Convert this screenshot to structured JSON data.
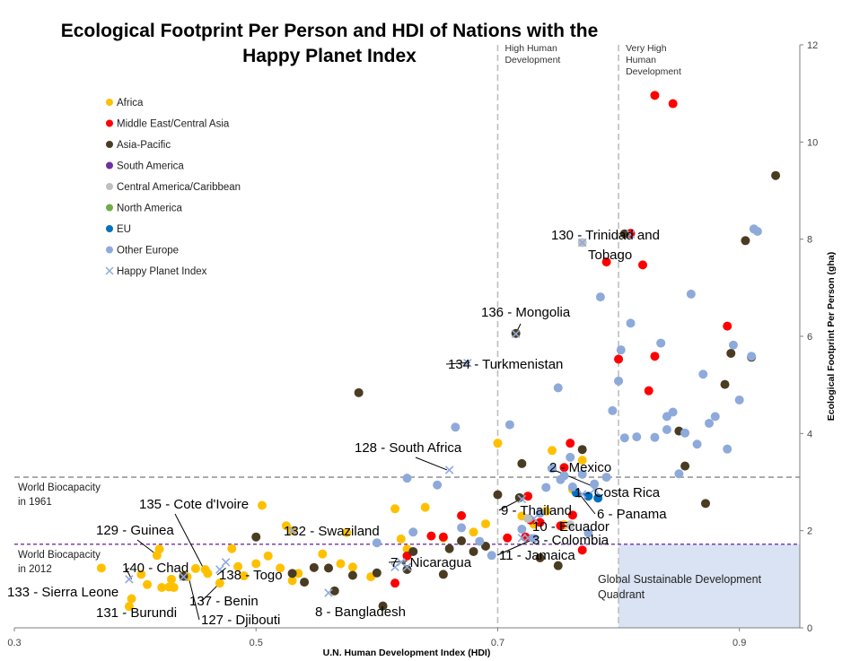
{
  "chart_data": {
    "type": "scatter",
    "title_lines": [
      "Ecological Footprint Per Person and HDI of Nations with the",
      "Happy Planet Index"
    ],
    "xlabel": "U.N. Human Development Index (HDI)",
    "ylabel": "Ecological Footprint Per Person (gha)",
    "xlim": [
      0.3,
      0.95
    ],
    "ylim": [
      0,
      12
    ],
    "x_ticks": [
      "0.3",
      "0.5",
      "0.7",
      "0.9"
    ],
    "y_ticks": [
      "0",
      "2",
      "4",
      "6",
      "8",
      "10",
      "12"
    ],
    "y_axis_position": "right",
    "grid": false,
    "legend_position": "top-left",
    "colors": {
      "Africa": "#ffc000",
      "Middle East/Central Asia": "#ff0000",
      "Asia-Pacific": "#4a3c22",
      "South America": "#7030a0",
      "Central America/Caribbean": "#bfbfbf",
      "North America": "#70ad47",
      "EU": "#0070c0",
      "Other Europe": "#8eaadb",
      "Happy Planet Index": "#8eaadb"
    },
    "legend": [
      "Africa",
      "Middle East/Central Asia",
      "Asia-Pacific",
      "South America",
      "Central America/Caribbean",
      "North America",
      "EU",
      "Other Europe",
      "Happy Planet Index"
    ],
    "reference_lines": [
      {
        "label_lines": [
          "World Biocapacity",
          "in 1961"
        ],
        "y": 3.1,
        "color": "#a6a6a6"
      },
      {
        "label_lines": [
          "World Biocapacity",
          "in 2012"
        ],
        "y": 1.72,
        "color": "#7030a0"
      }
    ],
    "hdi_thresholds": [
      {
        "label_lines": [
          "High Human",
          "Development"
        ],
        "x": 0.7
      },
      {
        "label_lines": [
          "Very High",
          "Human",
          "Development"
        ],
        "x": 0.8
      }
    ],
    "quadrant": {
      "label_lines": [
        "Global Sustainable Development",
        "Quadrant"
      ],
      "x": [
        0.8,
        0.95
      ],
      "y": [
        0,
        1.72
      ]
    },
    "series": [
      {
        "name": "Africa",
        "points": [
          [
            0.372,
            1.23
          ],
          [
            0.395,
            0.44
          ],
          [
            0.397,
            0.6
          ],
          [
            0.405,
            1.1
          ],
          [
            0.41,
            0.89
          ],
          [
            0.418,
            1.49
          ],
          [
            0.42,
            1.62
          ],
          [
            0.422,
            0.83
          ],
          [
            0.428,
            0.84
          ],
          [
            0.43,
            1.0
          ],
          [
            0.432,
            0.83
          ],
          [
            0.44,
            1.08
          ],
          [
            0.443,
            1.05
          ],
          [
            0.45,
            1.22
          ],
          [
            0.458,
            1.2
          ],
          [
            0.46,
            1.12
          ],
          [
            0.47,
            0.92
          ],
          [
            0.48,
            1.63
          ],
          [
            0.485,
            1.26
          ],
          [
            0.49,
            1.07
          ],
          [
            0.5,
            1.32
          ],
          [
            0.505,
            2.52
          ],
          [
            0.51,
            1.48
          ],
          [
            0.52,
            1.23
          ],
          [
            0.53,
            0.97
          ],
          [
            0.535,
            1.12
          ],
          [
            0.555,
            1.52
          ],
          [
            0.57,
            1.32
          ],
          [
            0.575,
            1.96
          ],
          [
            0.58,
            1.25
          ],
          [
            0.595,
            1.05
          ],
          [
            0.615,
            2.45
          ],
          [
            0.62,
            1.83
          ],
          [
            0.625,
            1.62
          ],
          [
            0.64,
            2.48
          ],
          [
            0.655,
            1.85
          ],
          [
            0.68,
            1.97
          ],
          [
            0.69,
            2.14
          ],
          [
            0.7,
            3.8
          ],
          [
            0.72,
            2.3
          ],
          [
            0.73,
            2.13
          ],
          [
            0.74,
            2.4
          ],
          [
            0.745,
            3.65
          ],
          [
            0.755,
            2.12
          ],
          [
            0.762,
            2.85
          ],
          [
            0.77,
            3.45
          ],
          [
            0.53,
            2.0
          ],
          [
            0.525,
            2.1
          ]
        ]
      },
      {
        "name": "Middle East/Central Asia",
        "points": [
          [
            0.615,
            0.92
          ],
          [
            0.625,
            1.48
          ],
          [
            0.645,
            1.89
          ],
          [
            0.655,
            1.87
          ],
          [
            0.67,
            2.31
          ],
          [
            0.708,
            1.85
          ],
          [
            0.723,
            1.87
          ],
          [
            0.727,
            2.22
          ],
          [
            0.735,
            2.17
          ],
          [
            0.752,
            2.1
          ],
          [
            0.755,
            3.3
          ],
          [
            0.76,
            3.8
          ],
          [
            0.762,
            2.32
          ],
          [
            0.77,
            1.6
          ],
          [
            0.79,
            7.53
          ],
          [
            0.8,
            5.53
          ],
          [
            0.82,
            7.47
          ],
          [
            0.825,
            4.88
          ],
          [
            0.83,
            5.59
          ],
          [
            0.83,
            10.96
          ],
          [
            0.845,
            10.79
          ],
          [
            0.89,
            6.21
          ],
          [
            0.81,
            8.12
          ],
          [
            0.725,
            2.71
          ]
        ]
      },
      {
        "name": "Asia-Pacific",
        "points": [
          [
            0.44,
            1.06
          ],
          [
            0.5,
            1.87
          ],
          [
            0.53,
            1.12
          ],
          [
            0.54,
            0.94
          ],
          [
            0.548,
            1.24
          ],
          [
            0.56,
            1.23
          ],
          [
            0.565,
            0.76
          ],
          [
            0.58,
            1.08
          ],
          [
            0.585,
            4.84
          ],
          [
            0.6,
            1.13
          ],
          [
            0.605,
            0.45
          ],
          [
            0.625,
            1.2
          ],
          [
            0.63,
            1.57
          ],
          [
            0.655,
            1.1
          ],
          [
            0.66,
            1.63
          ],
          [
            0.67,
            1.79
          ],
          [
            0.68,
            1.57
          ],
          [
            0.69,
            1.68
          ],
          [
            0.7,
            2.74
          ],
          [
            0.715,
            6.06
          ],
          [
            0.718,
            2.68
          ],
          [
            0.72,
            3.38
          ],
          [
            0.735,
            1.44
          ],
          [
            0.75,
            1.28
          ],
          [
            0.77,
            3.67
          ],
          [
            0.805,
            8.11
          ],
          [
            0.85,
            4.05
          ],
          [
            0.855,
            3.33
          ],
          [
            0.872,
            2.56
          ],
          [
            0.888,
            5.01
          ],
          [
            0.893,
            5.65
          ],
          [
            0.905,
            7.97
          ],
          [
            0.91,
            5.57
          ],
          [
            0.93,
            9.31
          ]
        ]
      },
      {
        "name": "Central America/Caribbean",
        "points": [
          [
            0.77,
            7.93
          ],
          [
            0.725,
            2.25
          ],
          [
            0.76,
            2.12
          ]
        ]
      },
      {
        "name": "EU",
        "points": [
          [
            0.765,
            2.78
          ],
          [
            0.775,
            2.71
          ],
          [
            0.783,
            2.67
          ]
        ]
      },
      {
        "name": "Other Europe",
        "points": [
          [
            0.6,
            1.75
          ],
          [
            0.625,
            3.08
          ],
          [
            0.63,
            1.97
          ],
          [
            0.65,
            2.94
          ],
          [
            0.665,
            4.13
          ],
          [
            0.67,
            2.06
          ],
          [
            0.685,
            1.78
          ],
          [
            0.695,
            1.49
          ],
          [
            0.71,
            4.18
          ],
          [
            0.72,
            2.03
          ],
          [
            0.73,
            1.84
          ],
          [
            0.735,
            2.36
          ],
          [
            0.74,
            2.89
          ],
          [
            0.745,
            3.28
          ],
          [
            0.75,
            4.94
          ],
          [
            0.752,
            3.05
          ],
          [
            0.755,
            3.13
          ],
          [
            0.76,
            3.51
          ],
          [
            0.762,
            2.9
          ],
          [
            0.77,
            3.16
          ],
          [
            0.775,
            1.95
          ],
          [
            0.78,
            2.96
          ],
          [
            0.785,
            6.81
          ],
          [
            0.79,
            3.1
          ],
          [
            0.795,
            4.47
          ],
          [
            0.8,
            5.08
          ],
          [
            0.802,
            5.72
          ],
          [
            0.805,
            3.91
          ],
          [
            0.81,
            6.27
          ],
          [
            0.815,
            3.93
          ],
          [
            0.83,
            3.92
          ],
          [
            0.835,
            5.86
          ],
          [
            0.84,
            4.08
          ],
          [
            0.84,
            4.35
          ],
          [
            0.845,
            4.44
          ],
          [
            0.85,
            3.17
          ],
          [
            0.855,
            4.01
          ],
          [
            0.86,
            6.87
          ],
          [
            0.865,
            3.78
          ],
          [
            0.87,
            5.22
          ],
          [
            0.875,
            4.21
          ],
          [
            0.88,
            4.35
          ],
          [
            0.89,
            3.68
          ],
          [
            0.895,
            5.82
          ],
          [
            0.9,
            4.69
          ],
          [
            0.91,
            5.59
          ],
          [
            0.912,
            8.21
          ],
          [
            0.915,
            8.16
          ]
        ]
      },
      {
        "name": "Happy Planet Index",
        "marker": "x",
        "points": [
          [
            0.395,
            1.0
          ],
          [
            0.44,
            1.05
          ],
          [
            0.47,
            1.2
          ],
          [
            0.475,
            1.35
          ],
          [
            0.53,
            2.0
          ],
          [
            0.62,
            1.35
          ],
          [
            0.625,
            1.25
          ],
          [
            0.66,
            3.25
          ],
          [
            0.675,
            5.45
          ],
          [
            0.715,
            6.05
          ],
          [
            0.72,
            2.65
          ],
          [
            0.725,
            1.85
          ],
          [
            0.72,
            1.85
          ],
          [
            0.73,
            2.25
          ],
          [
            0.77,
            2.75
          ],
          [
            0.78,
            2.85
          ],
          [
            0.77,
            7.93
          ],
          [
            0.81,
            8.1
          ],
          [
            0.56,
            0.72
          ],
          [
            0.615,
            1.25
          ]
        ]
      }
    ],
    "annotations": [
      {
        "label": "1 - Costa Rica",
        "x": 0.776,
        "y": 2.74
      },
      {
        "label": "2 - Mexico",
        "x": 0.78,
        "y": 2.9
      },
      {
        "label": "3 - Colombia",
        "x": 0.723,
        "y": 1.87
      },
      {
        "label": "6 - Panama",
        "x": 0.768,
        "y": 2.74
      },
      {
        "label": "7 - Nicaragua",
        "x": 0.625,
        "y": 1.37
      },
      {
        "label": "8 - Bangladesh",
        "x": 0.605,
        "y": 0.45
      },
      {
        "label": "9 - Thailand",
        "x": 0.722,
        "y": 2.69
      },
      {
        "label": "10 - Ecuador",
        "x": 0.73,
        "y": 2.22
      },
      {
        "label": "11 - Jamaica",
        "x": 0.73,
        "y": 1.83
      },
      {
        "label": "127 - Djibouti",
        "x": 0.444,
        "y": 1.06
      },
      {
        "label": "128 - South Africa",
        "x": 0.658,
        "y": 3.25
      },
      {
        "label": "129 - Guinea",
        "x": 0.418,
        "y": 1.5
      },
      {
        "label": "130 - Trinidad and Tobago",
        "x": 0.81,
        "y": 8.12
      },
      {
        "label": "131 - Burundi",
        "x": 0.395,
        "y": 0.44
      },
      {
        "label": "132 - Swaziland",
        "x": 0.53,
        "y": 2.0
      },
      {
        "label": "133 - Sierra Leone",
        "x": 0.395,
        "y": 1.23
      },
      {
        "label": "134 - Turkmenistan",
        "x": 0.677,
        "y": 5.46
      },
      {
        "label": "135 - Cote d'Ivoire",
        "x": 0.457,
        "y": 1.2
      },
      {
        "label": "136 - Mongolia",
        "x": 0.715,
        "y": 6.06
      },
      {
        "label": "137 - Benin",
        "x": 0.47,
        "y": 0.92
      },
      {
        "label": "138 - Togo",
        "x": 0.475,
        "y": 1.23
      },
      {
        "label": "140 - Chad",
        "x": 0.397,
        "y": 1.0
      }
    ]
  }
}
